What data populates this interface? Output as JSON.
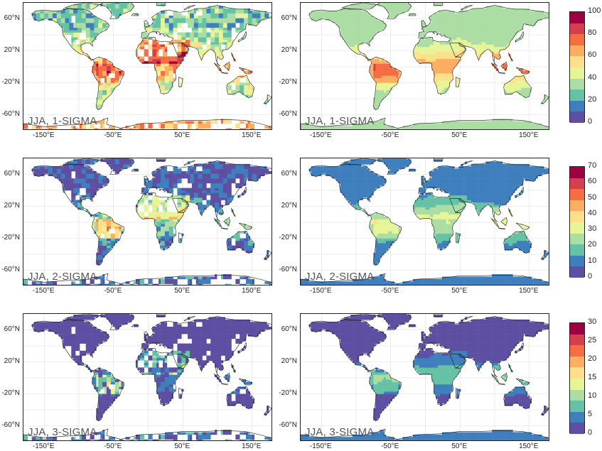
{
  "rows": [
    {
      "label": "JJA, 1-SIGMA",
      "colorbar": {
        "ticks": [
          "0",
          "20",
          "40",
          "60",
          "80",
          "100"
        ]
      },
      "left_style": "patchy_high",
      "right_style": "smooth_high"
    },
    {
      "label": "JJA, 2-SIGMA",
      "colorbar": {
        "ticks": [
          "0",
          "10",
          "20",
          "30",
          "40",
          "50",
          "60",
          "70"
        ]
      },
      "left_style": "patchy_mid",
      "right_style": "smooth_mid"
    },
    {
      "label": "JJA, 3-SIGMA",
      "colorbar": {
        "ticks": [
          "0",
          "5",
          "10",
          "15",
          "20",
          "25",
          "30"
        ]
      },
      "left_style": "patchy_low",
      "right_style": "smooth_low"
    }
  ],
  "axes": {
    "y_ticks": [
      "60°N",
      "20°N",
      "-20°N",
      "-60°N"
    ],
    "x_ticks": [
      "-150°E",
      "-50°E",
      "50°E",
      "150°E"
    ]
  },
  "palette": [
    "#5e4fa2",
    "#3f7fbd",
    "#66c2a5",
    "#abdda4",
    "#e6f598",
    "#fee08b",
    "#fdae61",
    "#f46d43",
    "#d53e4f",
    "#9e0142"
  ]
}
